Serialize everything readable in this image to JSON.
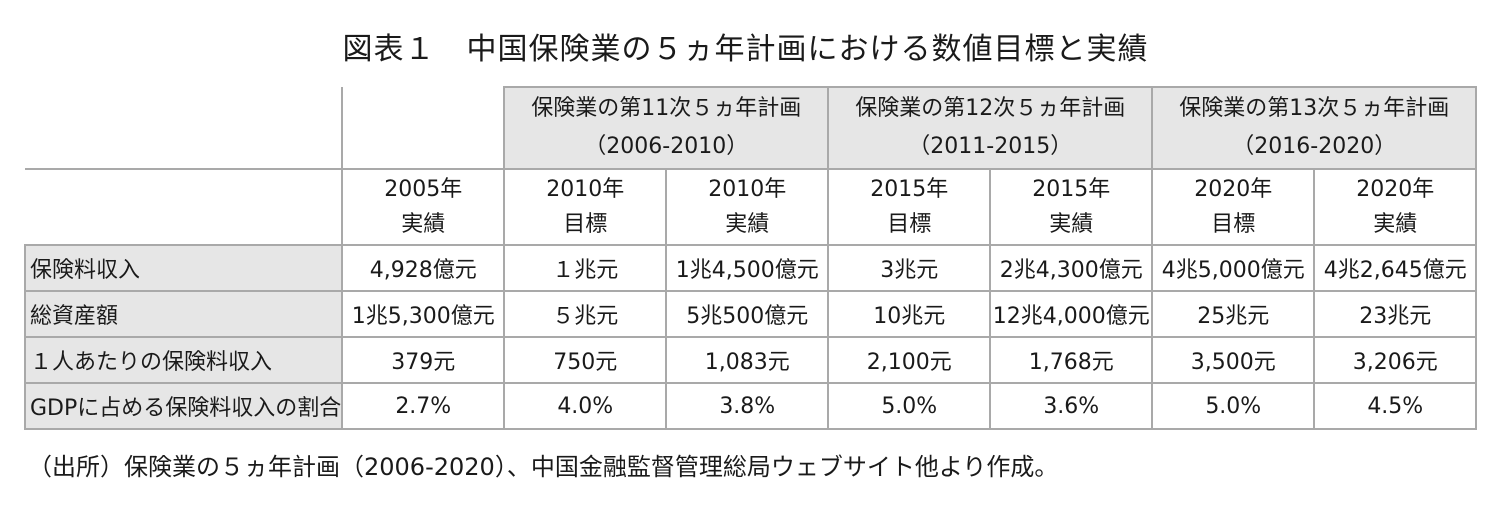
{
  "title": "図表１　中国保険業の５ヵ年計画における数値目標と実績",
  "plans": [
    {
      "name": "保険業の第11次５ヵ年計画",
      "period": "（2006-2010）"
    },
    {
      "name": "保険業の第12次５ヵ年計画",
      "period": "（2011-2015）"
    },
    {
      "name": "保険業の第13次５ヵ年計画",
      "period": "（2016-2020）"
    }
  ],
  "columns": [
    {
      "year": "2005年",
      "kind": "実績"
    },
    {
      "year": "2010年",
      "kind": "目標"
    },
    {
      "year": "2010年",
      "kind": "実績"
    },
    {
      "year": "2015年",
      "kind": "目標"
    },
    {
      "year": "2015年",
      "kind": "実績"
    },
    {
      "year": "2020年",
      "kind": "目標"
    },
    {
      "year": "2020年",
      "kind": "実績"
    }
  ],
  "rows": [
    {
      "label": "保険料収入",
      "values": [
        "4,928億元",
        "１兆元",
        "1兆4,500億元",
        "3兆元",
        "2兆4,300億元",
        "4兆5,000億元",
        "4兆2,645億元"
      ]
    },
    {
      "label": "総資産額",
      "values": [
        "1兆5,300億元",
        "５兆元",
        "5兆500億元",
        "10兆元",
        "12兆4,000億元",
        "25兆元",
        "23兆元"
      ]
    },
    {
      "label": "１人あたりの保険料収入",
      "values": [
        "379元",
        "750元",
        "1,083元",
        "2,100元",
        "1,768元",
        "3,500元",
        "3,206元"
      ]
    },
    {
      "label": "GDPに占める保険料収入の割合",
      "values": [
        "2.7%",
        "4.0%",
        "3.8%",
        "5.0%",
        "3.6%",
        "5.0%",
        "4.5%"
      ]
    }
  ],
  "source": "（出所）保険業の５ヵ年計画（2006-2020）、中国金融監督管理総局ウェブサイト他より作成。"
}
